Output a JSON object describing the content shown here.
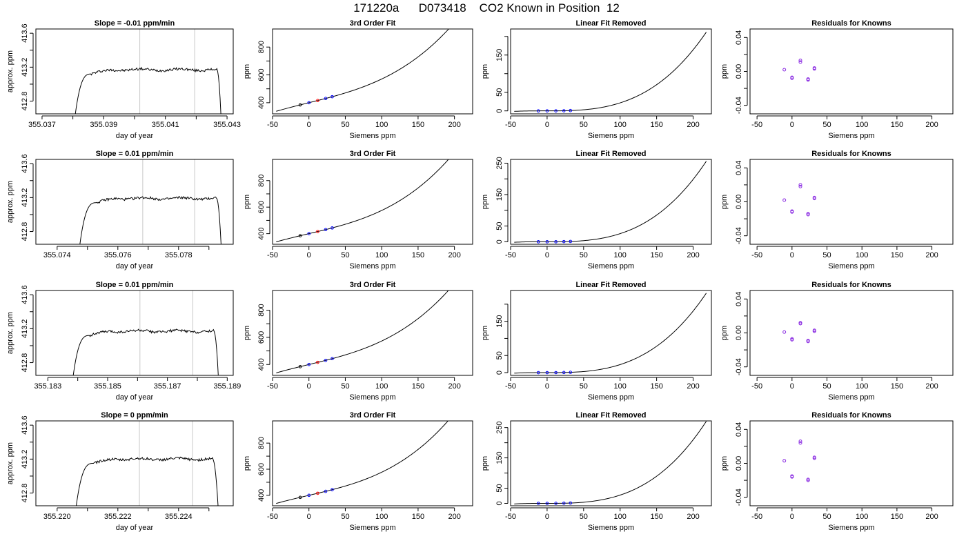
{
  "figure": {
    "title": "171220a      D073418    CO2 Known in Position  12"
  },
  "colors": {
    "trace": "#000000",
    "axis": "#000000",
    "marker_line": "#c8c8c8",
    "residual_point": "#8a2be2",
    "fit_point_black": "#000000",
    "fit_point_red": "#ff0000",
    "fit_point_blue": "#0000ff"
  },
  "chart_data": [
    {
      "type": "line",
      "panel": "time-series",
      "row": 1,
      "title": "Slope =  -0.01  ppm/min",
      "xlabel": "day of year",
      "ylabel": "approx. ppm",
      "xlim": [
        355.0368,
        355.0432
      ],
      "ylim": [
        412.65,
        413.65
      ],
      "xticks": [
        355.037,
        355.038,
        355.039,
        355.04,
        355.041,
        355.042,
        355.043
      ],
      "xtick_labels": [
        "355.037",
        "",
        "355.039",
        "",
        "355.041",
        "",
        "355.043"
      ],
      "yticks": [
        412.8,
        413.0,
        413.2,
        413.4,
        413.6
      ],
      "ytick_labels": [
        "412.8",
        "",
        "413.2",
        "",
        "413.6"
      ],
      "markers_x": [
        355.04017,
        355.04195
      ],
      "trace": {
        "x_start": 355.03808,
        "x_plateau": 355.0386,
        "x_end": 355.04267,
        "x_drop": 355.0428,
        "level": 413.17,
        "start_y": 412.65,
        "end_y": 412.65
      }
    },
    {
      "type": "line",
      "panel": "third-order-fit",
      "row": 1,
      "title": "3rd Order Fit",
      "xlabel": "Siemens ppm",
      "ylabel": "ppm",
      "xlim": [
        -50,
        225
      ],
      "ylim": [
        320,
        930
      ],
      "xticks": [
        -50,
        0,
        50,
        100,
        150,
        200
      ],
      "xtick_labels": [
        "-50",
        "0",
        "50",
        "100",
        "150",
        "200"
      ],
      "yticks": [
        400,
        500,
        600,
        700,
        800
      ],
      "ytick_labels": [
        "400",
        "",
        "600",
        "",
        "800"
      ],
      "curve": {
        "x_start": -45,
        "x_end": 218,
        "coef": [
          400,
          1.3,
          0.0002,
          3.85e-05
        ]
      },
      "points": [
        {
          "x": -12,
          "color": "black"
        },
        {
          "x": 0,
          "color": "blue"
        },
        {
          "x": 12,
          "color": "red"
        },
        {
          "x": 23,
          "color": "blue"
        },
        {
          "x": 32,
          "color": "blue"
        }
      ]
    },
    {
      "type": "line",
      "panel": "linear-fit-removed",
      "row": 1,
      "title": "Linear Fit Removed",
      "xlabel": "Siemens ppm",
      "ylabel": "ppm",
      "xlim": [
        -50,
        225
      ],
      "ylim": [
        -8,
        220
      ],
      "xticks": [
        -50,
        0,
        50,
        100,
        150,
        200
      ],
      "xtick_labels": [
        "-50",
        "0",
        "50",
        "100",
        "150",
        "200"
      ],
      "yticks": [
        0,
        50,
        100,
        150,
        200
      ],
      "ytick_labels": [
        "0",
        "50",
        "",
        "150",
        ""
      ],
      "curve": {
        "x_start": -45,
        "x_end": 218,
        "coef": [
          0,
          0,
          0.0002,
          1.95e-05
        ]
      },
      "points": [
        {
          "x": -12,
          "color": "blue"
        },
        {
          "x": 0,
          "color": "blue"
        },
        {
          "x": 12,
          "color": "blue"
        },
        {
          "x": 23,
          "color": "blue"
        },
        {
          "x": 32,
          "color": "blue"
        }
      ]
    },
    {
      "type": "scatter",
      "panel": "residuals",
      "row": 1,
      "title": "Residuals for Knowns",
      "xlabel": "Siemens ppm",
      "ylabel": "ppm",
      "xlim": [
        -60,
        230
      ],
      "ylim": [
        -0.05,
        0.05
      ],
      "xticks": [
        -50,
        0,
        50,
        100,
        150,
        200
      ],
      "xtick_labels": [
        "-50",
        "0",
        "50",
        "100",
        "150",
        "200"
      ],
      "yticks": [
        -0.04,
        -0.02,
        0.0,
        0.02,
        0.04
      ],
      "ytick_labels": [
        "-0.04",
        "",
        "0.00",
        "",
        "0.04"
      ],
      "points": [
        [
          -11,
          0.002
        ],
        [
          0,
          -0.008
        ],
        [
          0,
          -0.007
        ],
        [
          12,
          0.011
        ],
        [
          12,
          0.013
        ],
        [
          23,
          -0.009
        ],
        [
          23,
          -0.01
        ],
        [
          32,
          0.003
        ],
        [
          32,
          0.004
        ]
      ]
    },
    {
      "type": "line",
      "panel": "time-series",
      "row": 2,
      "title": "Slope =  0.01  ppm/min",
      "xlabel": "day of year",
      "ylabel": "approx. ppm",
      "xlim": [
        355.0733,
        355.0798
      ],
      "ylim": [
        412.65,
        413.65
      ],
      "xticks": [
        355.074,
        355.075,
        355.076,
        355.077,
        355.078,
        355.079
      ],
      "xtick_labels": [
        "355.074",
        "",
        "355.076",
        "",
        "355.078",
        ""
      ],
      "yticks": [
        412.8,
        413.0,
        413.2,
        413.4,
        413.6
      ],
      "ytick_labels": [
        "412.8",
        "",
        "413.2",
        "",
        "413.6"
      ],
      "markers_x": [
        355.07682,
        355.07853
      ],
      "trace": {
        "x_start": 355.07475,
        "x_plateau": 355.0753,
        "x_end": 355.07925,
        "x_drop": 355.0794,
        "level": 413.19,
        "start_y": 412.65,
        "end_y": 412.65
      }
    },
    {
      "type": "line",
      "panel": "third-order-fit",
      "row": 2,
      "title": "3rd Order Fit",
      "xlabel": "Siemens ppm",
      "ylabel": "ppm",
      "xlim": [
        -50,
        225
      ],
      "ylim": [
        320,
        960
      ],
      "xticks": [
        -50,
        0,
        50,
        100,
        150,
        200
      ],
      "xtick_labels": [
        "-50",
        "0",
        "50",
        "100",
        "150",
        "200"
      ],
      "yticks": [
        400,
        500,
        600,
        700,
        800
      ],
      "ytick_labels": [
        "400",
        "",
        "600",
        "",
        "800"
      ],
      "curve": {
        "x_start": -45,
        "x_end": 218,
        "coef": [
          400,
          1.3,
          0.0002,
          4.3e-05
        ]
      },
      "points": [
        {
          "x": -12,
          "color": "black"
        },
        {
          "x": 0,
          "color": "blue"
        },
        {
          "x": 12,
          "color": "red"
        },
        {
          "x": 23,
          "color": "blue"
        },
        {
          "x": 32,
          "color": "blue"
        }
      ]
    },
    {
      "type": "line",
      "panel": "linear-fit-removed",
      "row": 2,
      "title": "Linear Fit Removed",
      "xlabel": "Siemens ppm",
      "ylabel": "ppm",
      "xlim": [
        -50,
        225
      ],
      "ylim": [
        -8,
        262
      ],
      "xticks": [
        -50,
        0,
        50,
        100,
        150,
        200
      ],
      "xtick_labels": [
        "-50",
        "0",
        "50",
        "100",
        "150",
        "200"
      ],
      "yticks": [
        0,
        50,
        100,
        150,
        200,
        250
      ],
      "ytick_labels": [
        "0",
        "50",
        "",
        "150",
        "",
        "250"
      ],
      "curve": {
        "x_start": -45,
        "x_end": 218,
        "coef": [
          0,
          0,
          0.0002,
          2.38e-05
        ]
      },
      "points": [
        {
          "x": -12,
          "color": "blue"
        },
        {
          "x": 0,
          "color": "blue"
        },
        {
          "x": 12,
          "color": "blue"
        },
        {
          "x": 23,
          "color": "blue"
        },
        {
          "x": 32,
          "color": "blue"
        }
      ]
    },
    {
      "type": "scatter",
      "panel": "residuals",
      "row": 2,
      "title": "Residuals for Knowns",
      "xlabel": "Siemens ppm",
      "ylabel": "ppm",
      "xlim": [
        -60,
        230
      ],
      "ylim": [
        -0.05,
        0.05
      ],
      "xticks": [
        -50,
        0,
        50,
        100,
        150,
        200
      ],
      "xtick_labels": [
        "-50",
        "0",
        "50",
        "100",
        "150",
        "200"
      ],
      "yticks": [
        -0.04,
        -0.02,
        0.0,
        0.02,
        0.04
      ],
      "ytick_labels": [
        "-0.04",
        "",
        "0.00",
        "",
        "0.04"
      ],
      "points": [
        [
          -11,
          0.002
        ],
        [
          0,
          -0.011
        ],
        [
          0,
          -0.012
        ],
        [
          12,
          0.018
        ],
        [
          12,
          0.02
        ],
        [
          23,
          -0.014
        ],
        [
          23,
          -0.015
        ],
        [
          32,
          0.004
        ],
        [
          32,
          0.005
        ]
      ]
    },
    {
      "type": "line",
      "panel": "time-series",
      "row": 3,
      "title": "Slope =  0.01  ppm/min",
      "xlabel": "day of year",
      "ylabel": "approx. ppm",
      "xlim": [
        355.1826,
        355.1892
      ],
      "ylim": [
        412.65,
        413.65
      ],
      "xticks": [
        355.183,
        355.184,
        355.185,
        355.186,
        355.187,
        355.188,
        355.189
      ],
      "xtick_labels": [
        "355.183",
        "",
        "355.185",
        "",
        "355.187",
        "",
        "355.189"
      ],
      "yticks": [
        412.8,
        413.0,
        413.2,
        413.4,
        413.6
      ],
      "ytick_labels": [
        "412.8",
        "",
        "413.2",
        "",
        "413.6"
      ],
      "markers_x": [
        355.18608,
        355.18785
      ],
      "trace": {
        "x_start": 355.18385,
        "x_plateau": 355.1844,
        "x_end": 355.18855,
        "x_drop": 355.1887,
        "level": 413.17,
        "start_y": 412.65,
        "end_y": 412.65
      }
    },
    {
      "type": "line",
      "panel": "third-order-fit",
      "row": 3,
      "title": "3rd Order Fit",
      "xlabel": "Siemens ppm",
      "ylabel": "ppm",
      "xlim": [
        -50,
        225
      ],
      "ylim": [
        320,
        945
      ],
      "xticks": [
        -50,
        0,
        50,
        100,
        150,
        200
      ],
      "xtick_labels": [
        "-50",
        "0",
        "50",
        "100",
        "150",
        "200"
      ],
      "yticks": [
        400,
        500,
        600,
        700,
        800
      ],
      "ytick_labels": [
        "400",
        "",
        "600",
        "",
        "800"
      ],
      "curve": {
        "x_start": -45,
        "x_end": 218,
        "coef": [
          400,
          1.3,
          0.0002,
          4.1e-05
        ]
      },
      "points": [
        {
          "x": -12,
          "color": "black"
        },
        {
          "x": 0,
          "color": "blue"
        },
        {
          "x": 12,
          "color": "red"
        },
        {
          "x": 23,
          "color": "blue"
        },
        {
          "x": 32,
          "color": "blue"
        }
      ]
    },
    {
      "type": "line",
      "panel": "linear-fit-removed",
      "row": 3,
      "title": "Linear Fit Removed",
      "xlabel": "Siemens ppm",
      "ylabel": "ppm",
      "xlim": [
        -50,
        225
      ],
      "ylim": [
        -8,
        240
      ],
      "xticks": [
        -50,
        0,
        50,
        100,
        150,
        200
      ],
      "xtick_labels": [
        "-50",
        "0",
        "50",
        "100",
        "150",
        "200"
      ],
      "yticks": [
        0,
        50,
        100,
        150,
        200
      ],
      "ytick_labels": [
        "0",
        "50",
        "",
        "150",
        ""
      ],
      "curve": {
        "x_start": -45,
        "x_end": 218,
        "coef": [
          0,
          0,
          0.0002,
          2.15e-05
        ]
      },
      "points": [
        {
          "x": -12,
          "color": "blue"
        },
        {
          "x": 0,
          "color": "blue"
        },
        {
          "x": 12,
          "color": "blue"
        },
        {
          "x": 23,
          "color": "blue"
        },
        {
          "x": 32,
          "color": "blue"
        }
      ]
    },
    {
      "type": "scatter",
      "panel": "residuals",
      "row": 3,
      "title": "Residuals for Knowns",
      "xlabel": "Siemens ppm",
      "ylabel": "ppm",
      "xlim": [
        -60,
        230
      ],
      "ylim": [
        -0.05,
        0.05
      ],
      "xticks": [
        -50,
        0,
        50,
        100,
        150,
        200
      ],
      "xtick_labels": [
        "-50",
        "0",
        "50",
        "100",
        "150",
        "200"
      ],
      "yticks": [
        -0.04,
        -0.02,
        0.0,
        0.02,
        0.04
      ],
      "ytick_labels": [
        "-0.04",
        "",
        "0.00",
        "",
        "0.04"
      ],
      "points": [
        [
          -11,
          0.001
        ],
        [
          0,
          -0.007
        ],
        [
          0,
          -0.008
        ],
        [
          12,
          0.011
        ],
        [
          12,
          0.012
        ],
        [
          23,
          -0.009
        ],
        [
          23,
          -0.01
        ],
        [
          32,
          0.002
        ],
        [
          32,
          0.003
        ]
      ]
    },
    {
      "type": "line",
      "panel": "time-series",
      "row": 4,
      "title": "Slope =  0  ppm/min",
      "xlabel": "day of year",
      "ylabel": "approx. ppm",
      "xlim": [
        355.2193,
        355.2258
      ],
      "ylim": [
        412.65,
        413.65
      ],
      "xticks": [
        355.22,
        355.221,
        355.222,
        355.223,
        355.224,
        355.225
      ],
      "xtick_labels": [
        "355.220",
        "",
        "355.222",
        "",
        "355.224",
        ""
      ],
      "yticks": [
        412.8,
        413.0,
        413.2,
        413.4,
        413.6
      ],
      "ytick_labels": [
        "412.8",
        "",
        "413.2",
        "",
        "413.6"
      ],
      "markers_x": [
        355.22271,
        355.22446
      ],
      "trace": {
        "x_start": 355.22063,
        "x_plateau": 355.2212,
        "x_end": 355.22512,
        "x_drop": 355.2253,
        "level": 413.2,
        "start_y": 412.65,
        "end_y": 412.65
      }
    },
    {
      "type": "line",
      "panel": "third-order-fit",
      "row": 4,
      "title": "3rd Order Fit",
      "xlabel": "Siemens ppm",
      "ylabel": "ppm",
      "xlim": [
        -50,
        225
      ],
      "ylim": [
        320,
        970
      ],
      "xticks": [
        -50,
        0,
        50,
        100,
        150,
        200
      ],
      "xtick_labels": [
        "-50",
        "0",
        "50",
        "100",
        "150",
        "200"
      ],
      "yticks": [
        400,
        500,
        600,
        700,
        800
      ],
      "ytick_labels": [
        "400",
        "",
        "600",
        "",
        "800"
      ],
      "curve": {
        "x_start": -45,
        "x_end": 218,
        "coef": [
          400,
          1.3,
          0.0002,
          4.5e-05
        ]
      },
      "points": [
        {
          "x": -12,
          "color": "black"
        },
        {
          "x": 0,
          "color": "blue"
        },
        {
          "x": 12,
          "color": "red"
        },
        {
          "x": 23,
          "color": "blue"
        },
        {
          "x": 32,
          "color": "blue"
        }
      ]
    },
    {
      "type": "line",
      "panel": "linear-fit-removed",
      "row": 4,
      "title": "Linear Fit Removed",
      "xlabel": "Siemens ppm",
      "ylabel": "ppm",
      "xlim": [
        -50,
        225
      ],
      "ylim": [
        -8,
        272
      ],
      "xticks": [
        -50,
        0,
        50,
        100,
        150,
        200,
        250
      ],
      "xtick_labels": [
        "-50",
        "0",
        "50",
        "100",
        "150",
        "200",
        ""
      ],
      "yticks": [
        0,
        50,
        100,
        150,
        200,
        250
      ],
      "ytick_labels": [
        "0",
        "50",
        "",
        "150",
        "",
        "250"
      ],
      "curve": {
        "x_start": -45,
        "x_end": 218,
        "coef": [
          0,
          0,
          0.0002,
          2.52e-05
        ]
      },
      "points": [
        {
          "x": -12,
          "color": "blue"
        },
        {
          "x": 0,
          "color": "blue"
        },
        {
          "x": 12,
          "color": "blue"
        },
        {
          "x": 23,
          "color": "blue"
        },
        {
          "x": 32,
          "color": "blue"
        }
      ]
    },
    {
      "type": "scatter",
      "panel": "residuals",
      "row": 4,
      "title": "Residuals for Knowns",
      "xlabel": "Siemens ppm",
      "ylabel": "ppm",
      "xlim": [
        -60,
        230
      ],
      "ylim": [
        -0.05,
        0.05
      ],
      "xticks": [
        -50,
        0,
        50,
        100,
        150,
        200
      ],
      "xtick_labels": [
        "-50",
        "0",
        "50",
        "100",
        "150",
        "200"
      ],
      "yticks": [
        -0.04,
        -0.02,
        0.0,
        0.02,
        0.04
      ],
      "ytick_labels": [
        "-0.04",
        "",
        "0.00",
        "",
        "0.04"
      ],
      "points": [
        [
          -11,
          0.003
        ],
        [
          0,
          -0.015
        ],
        [
          0,
          -0.016
        ],
        [
          12,
          0.024
        ],
        [
          12,
          0.026
        ],
        [
          23,
          -0.019
        ],
        [
          23,
          -0.02
        ],
        [
          32,
          0.006
        ],
        [
          32,
          0.007
        ]
      ]
    }
  ]
}
